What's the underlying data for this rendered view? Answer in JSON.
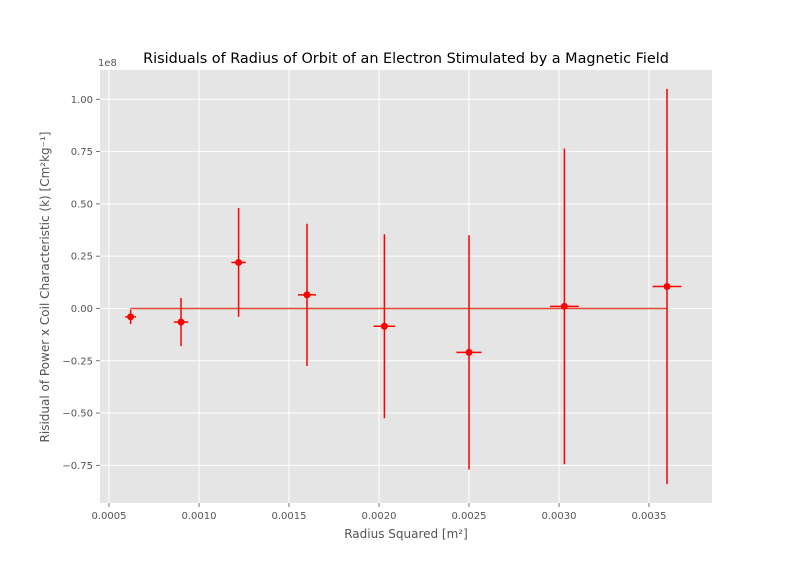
{
  "chart_data": {
    "type": "scatter",
    "title": "Risiduals of Radius of Orbit of an Electron Stimulated by a Magnetic Field",
    "xlabel": "Radius Squared [m²]",
    "ylabel": "Risidual of Power x Coil Characteristic (k) [Cm²kg⁻¹]",
    "offset_label": "1e8",
    "xlim": [
      0.00045,
      0.00385
    ],
    "ylim": [
      -0.93,
      1.14
    ],
    "x_ticks": [
      0.0005,
      0.001,
      0.0015,
      0.002,
      0.0025,
      0.003,
      0.0035
    ],
    "x_tick_labels": [
      "0.0005",
      "0.0010",
      "0.0015",
      "0.0020",
      "0.0025",
      "0.0030",
      "0.0035"
    ],
    "y_ticks": [
      -0.75,
      -0.5,
      -0.25,
      0.0,
      0.25,
      0.5,
      0.75,
      1.0
    ],
    "y_tick_labels": [
      "−0.75",
      "−0.50",
      "−0.25",
      "0.00",
      "0.25",
      "0.50",
      "0.75",
      "1.00"
    ],
    "y_scale_factor": 100000000,
    "grid": true,
    "background": "#e5e5e5",
    "grid_color": "#ffffff",
    "marker_color": "#ff0000",
    "zero_line_color": "#e24a33",
    "zero_line": {
      "x": [
        0.00062,
        0.0036
      ],
      "y": [
        0,
        0
      ]
    },
    "points": [
      {
        "x": 0.00062,
        "y": -0.04,
        "x_err": 3e-05,
        "y_err": 0.035
      },
      {
        "x": 0.0009,
        "y": -0.065,
        "x_err": 4e-05,
        "y_err": 0.115
      },
      {
        "x": 0.00122,
        "y": 0.22,
        "x_err": 4e-05,
        "y_err": 0.26
      },
      {
        "x": 0.0016,
        "y": 0.065,
        "x_err": 5e-05,
        "y_err": 0.34
      },
      {
        "x": 0.00203,
        "y": -0.085,
        "x_err": 6e-05,
        "y_err": 0.44
      },
      {
        "x": 0.0025,
        "y": -0.21,
        "x_err": 7e-05,
        "y_err": 0.56
      },
      {
        "x": 0.00303,
        "y": 0.01,
        "x_err": 8e-05,
        "y_err": 0.755
      },
      {
        "x": 0.0036,
        "y": 0.105,
        "x_err": 8e-05,
        "y_err": 0.945
      }
    ]
  }
}
